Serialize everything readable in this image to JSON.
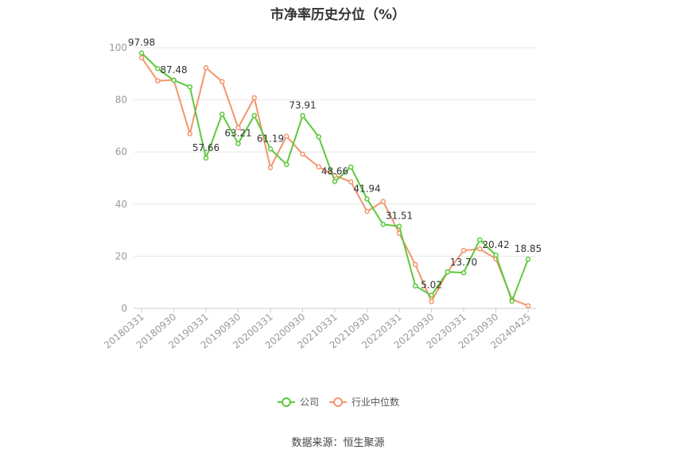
{
  "title": "市净率历史分位（%）",
  "source": "数据来源：恒生聚源",
  "chart_data": {
    "type": "line",
    "title": "市净率历史分位（%）",
    "ylim": [
      0,
      100
    ],
    "yticks": [
      0,
      20,
      40,
      60,
      80,
      100
    ],
    "x_tick_labels": [
      "20180331",
      "20180930",
      "20190331",
      "20190930",
      "20200331",
      "20200930",
      "20210331",
      "20210930",
      "20220331",
      "20220930",
      "20230331",
      "20230930",
      "20240425"
    ],
    "grid": true,
    "legend_position": "bottom",
    "series": [
      {
        "name": "公司",
        "color": "#5cc93c",
        "values": [
          97.98,
          92.0,
          87.48,
          85.0,
          57.66,
          74.5,
          63.21,
          74.0,
          61.19,
          55.2,
          73.91,
          65.8,
          48.66,
          54.2,
          41.94,
          32.2,
          31.51,
          8.6,
          5.02,
          14.0,
          13.7,
          26.3,
          20.42,
          2.8,
          18.85
        ]
      },
      {
        "name": "行业中位数",
        "color": "#f4956b",
        "values": [
          96.2,
          87.3,
          87.6,
          67.0,
          92.3,
          87.0,
          69.3,
          80.8,
          54.0,
          66.0,
          59.2,
          54.3,
          51.0,
          48.5,
          37.2,
          41.0,
          28.8,
          16.8,
          2.6,
          14.0,
          22.2,
          22.8,
          19.0,
          3.5,
          1.0
        ]
      }
    ],
    "data_labels": [
      {
        "index": 0,
        "text": "97.98"
      },
      {
        "index": 2,
        "text": "87.48"
      },
      {
        "index": 4,
        "text": "57.66"
      },
      {
        "index": 6,
        "text": "63.21"
      },
      {
        "index": 8,
        "text": "61.19"
      },
      {
        "index": 10,
        "text": "73.91"
      },
      {
        "index": 12,
        "text": "48.66"
      },
      {
        "index": 14,
        "text": "41.94"
      },
      {
        "index": 16,
        "text": "31.51"
      },
      {
        "index": 18,
        "text": "5.02"
      },
      {
        "index": 20,
        "text": "13.70"
      },
      {
        "index": 22,
        "text": "20.42"
      },
      {
        "index": 24,
        "text": "18.85"
      }
    ]
  }
}
